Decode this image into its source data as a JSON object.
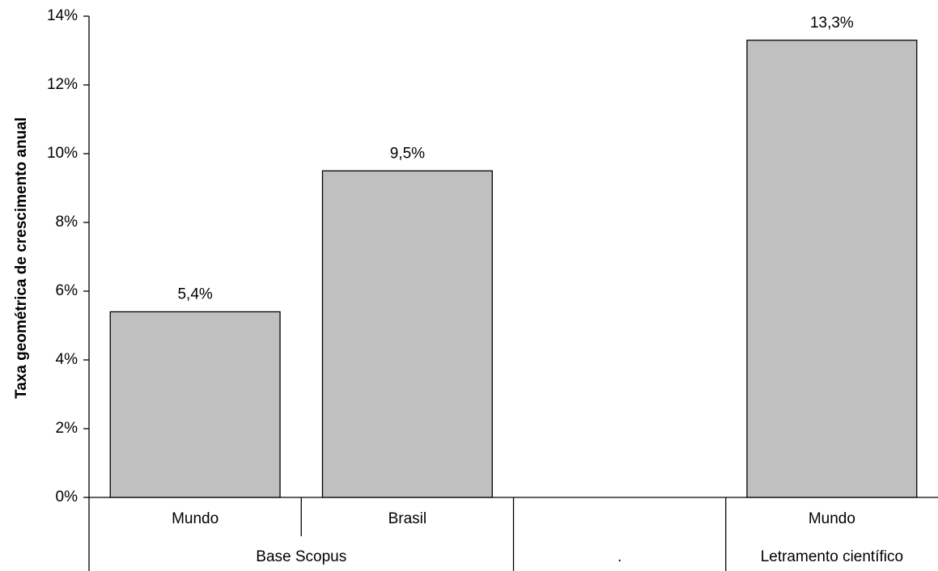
{
  "chart_data": {
    "type": "bar",
    "title": "",
    "ylabel": "Taxa geométrica de crescimento anual",
    "xlabel": "",
    "ylim": [
      0,
      14
    ],
    "y_ticks": [
      "0%",
      "2%",
      "4%",
      "6%",
      "8%",
      "10%",
      "12%",
      "14%"
    ],
    "y_tick_values": [
      0,
      2,
      4,
      6,
      8,
      10,
      12,
      14
    ],
    "grid": false,
    "bar_color": "#c0c0c0",
    "categories": [
      "Mundo",
      "Brasil",
      "",
      "Mundo"
    ],
    "values": [
      5.4,
      9.5,
      null,
      13.3
    ],
    "data_labels": [
      "5,4%",
      "9,5%",
      "",
      "13,3%"
    ],
    "groups": [
      {
        "label": "Base Scopus",
        "categories": 2
      },
      {
        "label": ".",
        "categories": 1
      },
      {
        "label": "Letramento científico",
        "categories": 1
      }
    ]
  }
}
